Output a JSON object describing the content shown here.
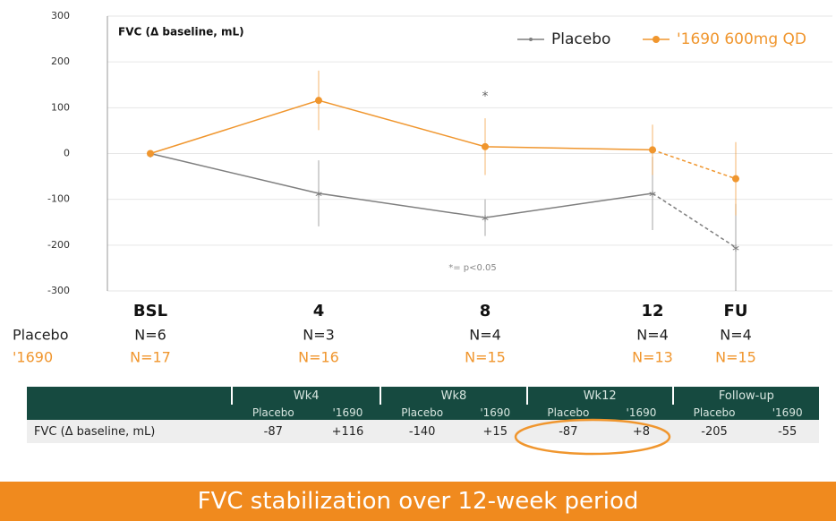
{
  "chart_data": {
    "type": "line",
    "title": "FVC (Δ baseline, mL)",
    "categories": [
      "BSL",
      "4",
      "8",
      "12",
      "FU"
    ],
    "series": [
      {
        "name": "Placebo",
        "color": "#7f7f7f",
        "values": [
          0,
          -87,
          -140,
          -87,
          -205
        ],
        "errors": [
          0,
          72,
          40,
          80,
          95
        ]
      },
      {
        "name": "'1690 600mg QD",
        "color": "#f0962e",
        "values": [
          0,
          116,
          15,
          8,
          -55
        ],
        "errors": [
          0,
          65,
          62,
          55,
          80
        ]
      }
    ],
    "ylim": [
      -300,
      300
    ],
    "yticks": [
      -300,
      -200,
      -100,
      0,
      100,
      200,
      300
    ],
    "grid": true,
    "legend": "top-right",
    "annotations": [
      "*",
      "*= p<0.05"
    ]
  },
  "sample_sizes": [
    {
      "name": "Placebo",
      "values": [
        "N=6",
        "N=3",
        "N=4",
        "N=4",
        "N=4"
      ]
    },
    {
      "name": "'1690",
      "values": [
        "N=17",
        "N=16",
        "N=15",
        "N=13",
        "N=15"
      ]
    }
  ],
  "table": {
    "groups": [
      "Wk4",
      "Wk8",
      "Wk12",
      "Follow-up"
    ],
    "subheaders": [
      "Placebo",
      "'1690",
      "Placebo",
      "'1690",
      "Placebo",
      "'1690",
      "Placebo",
      "'1690"
    ],
    "row": [
      "FVC (Δ baseline, mL)",
      "-87",
      "+116",
      "-140",
      "+15",
      "-87",
      "+8",
      "-205",
      "-55"
    ]
  },
  "banner": "FVC stabilization over 12-week period"
}
